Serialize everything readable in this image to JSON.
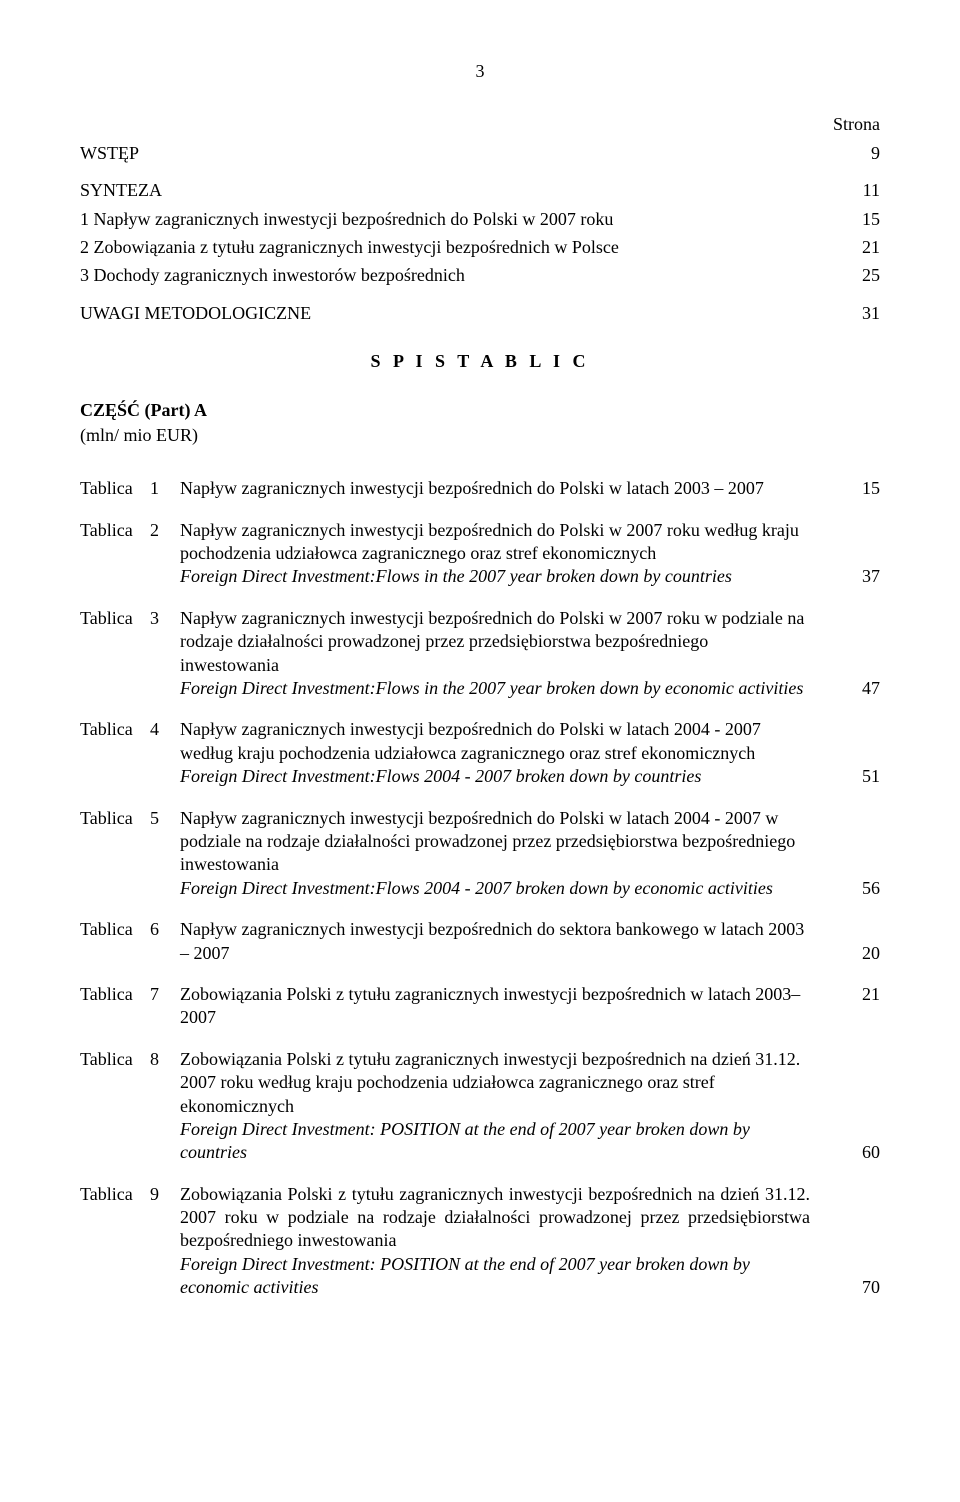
{
  "pageNumber": "3",
  "stronaLabel": "Strona",
  "topEntries": [
    {
      "label": "WSTĘP",
      "page": "9"
    },
    {
      "label": "SYNTEZA",
      "page": "11"
    },
    {
      "label": "1   Napływ zagranicznych inwestycji bezpośrednich do Polski w 2007 roku",
      "page": "15"
    },
    {
      "label": "2   Zobowiązania z tytułu zagranicznych inwestycji bezpośrednich w Polsce",
      "page": "21"
    },
    {
      "label": "3   Dochody zagranicznych inwestorów bezpośrednich",
      "page": "25"
    },
    {
      "label": "UWAGI METODOLOGICZNE",
      "page": "31"
    }
  ],
  "spisHeading": "S P I S  T A B L I C",
  "partLabel": "CZĘŚĆ (Part) A",
  "subLabel": "(mln/ mio EUR)",
  "tablicaLabel": "Tablica",
  "tablice": [
    {
      "num": "1",
      "desc": "Napływ zagranicznych inwestycji bezpośrednich do Polski w latach 2003 – 2007",
      "italicDesc": "",
      "page": "15"
    },
    {
      "num": "2",
      "desc": "Napływ zagranicznych inwestycji bezpośrednich do Polski w 2007 roku według kraju pochodzenia udziałowca zagranicznego oraz stref ekonomicznych",
      "italicDesc": "Foreign Direct Investment:Flows in the 2007 year broken down by countries",
      "page": "37"
    },
    {
      "num": "3",
      "desc": "Napływ zagranicznych inwestycji bezpośrednich do Polski w 2007 roku w podziale na rodzaje działalności prowadzonej przez przedsiębiorstwa bezpośredniego inwestowania",
      "italicDesc": "Foreign Direct Investment:Flows in the 2007 year broken down by economic activities",
      "page": "47"
    },
    {
      "num": "4",
      "desc": "Napływ zagranicznych inwestycji bezpośrednich do Polski w latach 2004 - 2007 według kraju pochodzenia udziałowca zagranicznego oraz stref ekonomicznych",
      "italicDesc": "Foreign Direct Investment:Flows 2004 - 2007 broken down by countries",
      "page": "51"
    },
    {
      "num": "5",
      "desc": "Napływ zagranicznych inwestycji bezpośrednich do Polski w latach 2004 - 2007 w podziale na rodzaje działalności prowadzonej przez przedsiębiorstwa bezpośredniego inwestowania",
      "italicDesc": "Foreign Direct Investment:Flows 2004 - 2007 broken down by economic activities",
      "page": "56"
    },
    {
      "num": "6",
      "desc": "Napływ zagranicznych inwestycji bezpośrednich do sektora bankowego w latach 2003 – 2007",
      "italicDesc": "",
      "page": "20"
    },
    {
      "num": "7",
      "desc": "Zobowiązania Polski z tytułu zagranicznych inwestycji bezpośrednich w latach 2003– 2007",
      "italicDesc": "",
      "page": "21"
    },
    {
      "num": "8",
      "desc": "Zobowiązania Polski z tytułu zagranicznych inwestycji bezpośrednich na dzień 31.12. 2007 roku według kraju pochodzenia udziałowca zagranicznego oraz stref ekonomicznych",
      "italicDesc": "Foreign Direct Investment: POSITION at the end of 2007 year broken down by countries",
      "page": "60"
    },
    {
      "num": "9",
      "desc": "Zobowiązania Polski z tytułu zagranicznych inwestycji bezpośrednich na dzień 31.12. 2007 roku w podziale na rodzaje działalności prowadzonej przez przedsiębiorstwa bezpośredniego inwestowania",
      "italicDesc": "Foreign Direct Investment: POSITION at the end of 2007 year broken down by economic activities",
      "page": "70"
    }
  ]
}
